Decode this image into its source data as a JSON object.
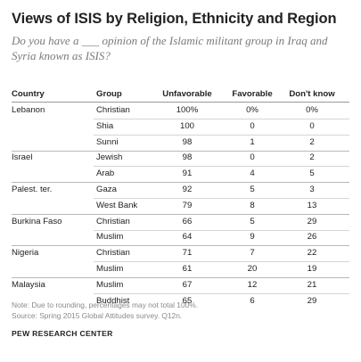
{
  "title": "Views of ISIS by Religion, Ethnicity and Region",
  "subtitle": "Do you have a ___ opinion of the Islamic militant group in Iraq and Syria known as ISIS?",
  "chart_data": {
    "type": "table",
    "columns": [
      "Country",
      "Group",
      "Unfavorable",
      "Favorable",
      "Don't know"
    ],
    "rows": [
      {
        "country": "Lebanon",
        "group": "Christian",
        "unfavorable": "100%",
        "favorable": "0%",
        "dont_know": "0%"
      },
      {
        "country": "",
        "group": "Shia",
        "unfavorable": "100",
        "favorable": "0",
        "dont_know": "0"
      },
      {
        "country": "",
        "group": "Sunni",
        "unfavorable": "98",
        "favorable": "1",
        "dont_know": "2"
      },
      {
        "country": "Israel",
        "group": "Jewish",
        "unfavorable": "98",
        "favorable": "0",
        "dont_know": "2"
      },
      {
        "country": "",
        "group": "Arab",
        "unfavorable": "91",
        "favorable": "4",
        "dont_know": "5"
      },
      {
        "country": "Palest. ter.",
        "group": "Gaza",
        "unfavorable": "92",
        "favorable": "5",
        "dont_know": "3"
      },
      {
        "country": "",
        "group": "West Bank",
        "unfavorable": "79",
        "favorable": "8",
        "dont_know": "13"
      },
      {
        "country": "Burkina Faso",
        "group": "Christian",
        "unfavorable": "66",
        "favorable": "5",
        "dont_know": "29"
      },
      {
        "country": "",
        "group": "Muslim",
        "unfavorable": "64",
        "favorable": "9",
        "dont_know": "26"
      },
      {
        "country": "Nigeria",
        "group": "Christian",
        "unfavorable": "71",
        "favorable": "7",
        "dont_know": "22"
      },
      {
        "country": "",
        "group": "Muslim",
        "unfavorable": "61",
        "favorable": "20",
        "dont_know": "19"
      },
      {
        "country": "Malaysia",
        "group": "Muslim",
        "unfavorable": "67",
        "favorable": "12",
        "dont_know": "21"
      },
      {
        "country": "",
        "group": "Buddhist",
        "unfavorable": "65",
        "favorable": "6",
        "dont_know": "29"
      }
    ]
  },
  "notes": {
    "rounding": "Note: Due to rounding, percentages may not total 100%.",
    "source": "Source: Spring 2015 Global Attitudes survey. Q12n."
  },
  "organization": "PEW RESEARCH CENTER"
}
